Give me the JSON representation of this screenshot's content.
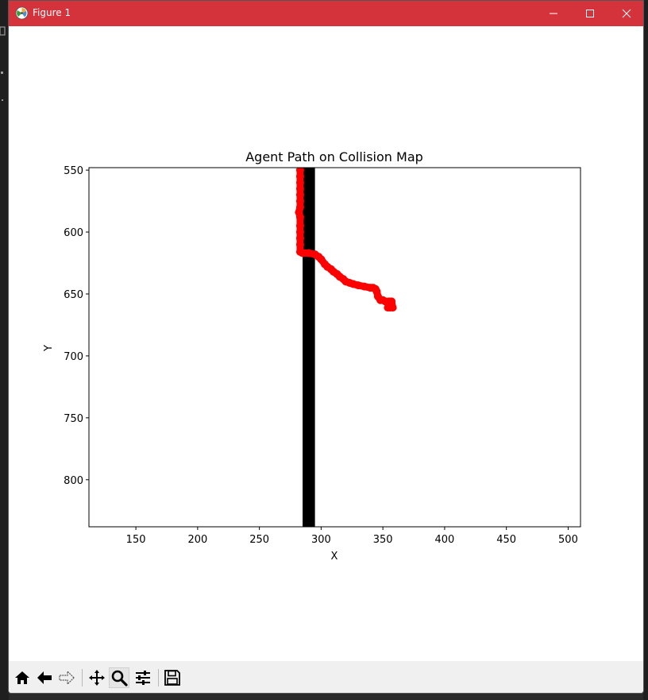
{
  "window": {
    "title": "Figure 1",
    "minimize": "minimize",
    "maximize": "maximize",
    "close": "close"
  },
  "colors": {
    "titlebar": "#d5333b",
    "path": "#ff0000",
    "wall": "#000000",
    "toolbar": "#f0f0f0"
  },
  "toolbar": {
    "tools": [
      {
        "name": "home-icon",
        "tooltip": "Home"
      },
      {
        "name": "back-arrow-icon",
        "tooltip": "Back"
      },
      {
        "name": "forward-arrow-icon",
        "tooltip": "Forward"
      },
      {
        "name": "pan-icon",
        "tooltip": "Pan"
      },
      {
        "name": "zoom-icon",
        "tooltip": "Zoom"
      },
      {
        "name": "configure-subplots-icon",
        "tooltip": "Configure subplots"
      },
      {
        "name": "save-icon",
        "tooltip": "Save"
      }
    ],
    "active_tool": "zoom-icon"
  },
  "chart_data": {
    "type": "scatter",
    "title": "Agent Path on Collision Map",
    "xlabel": "X",
    "ylabel": "Y",
    "xlim": [
      112,
      510
    ],
    "ylim": [
      838,
      548
    ],
    "y_inverted": true,
    "xticks": [
      150,
      200,
      250,
      300,
      350,
      400,
      450,
      500
    ],
    "yticks": [
      550,
      600,
      650,
      700,
      750,
      800
    ],
    "grid": false,
    "legend": "none",
    "obstacles": [
      {
        "type": "wall",
        "x_min": 285,
        "x_max": 295,
        "y_min": 548,
        "y_max": 838
      }
    ],
    "series": [
      {
        "color": "#ff0000",
        "x": [
          283,
          283,
          283,
          283,
          283,
          283,
          283,
          282,
          283,
          283,
          283,
          283,
          283,
          283,
          285,
          290,
          295,
          298,
          300,
          303,
          305,
          308,
          310,
          313,
          315,
          318,
          320,
          323,
          326,
          330,
          335,
          340,
          342,
          344,
          345,
          346,
          348,
          350,
          352,
          355,
          357,
          358,
          356,
          354
        ],
        "y": [
          550,
          555,
          560,
          565,
          570,
          575,
          580,
          584,
          588,
          595,
          600,
          605,
          610,
          616,
          617,
          617,
          618,
          620,
          622,
          626,
          628,
          630,
          632,
          634,
          636,
          638,
          640,
          641,
          642,
          643,
          644,
          645,
          645,
          646,
          648,
          652,
          655,
          655,
          656,
          656,
          656,
          661,
          661,
          661
        ]
      }
    ]
  }
}
